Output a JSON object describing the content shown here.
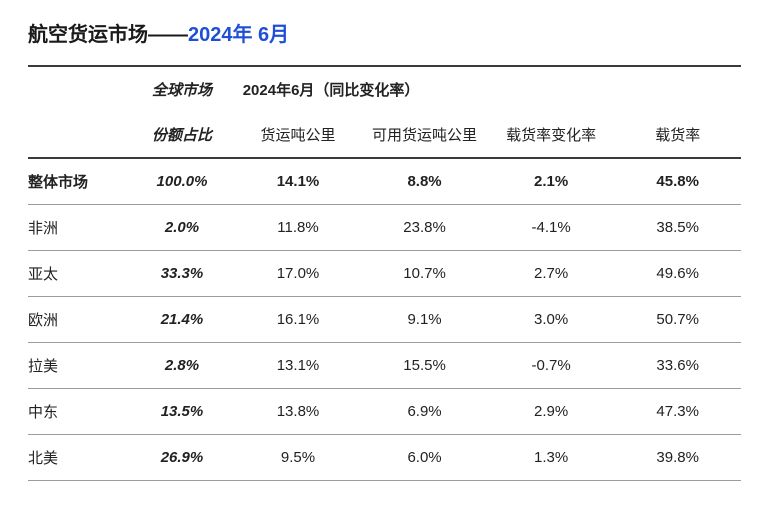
{
  "title": {
    "prefix": "航空货运市场——",
    "period": "2024年 6月"
  },
  "colors": {
    "title_black": "#1a1a1a",
    "title_blue": "#1f4fd6",
    "border_heavy": "#3a3a3a",
    "border_light": "#9c9c9c",
    "background": "#ffffff"
  },
  "header": {
    "top": {
      "share_group": "全球市场",
      "period_group": "2024年6月（同比变化率）"
    },
    "sub": {
      "share": "份额占比",
      "ctk": "货运吨公里",
      "actk": "可用货运吨公里",
      "lf_change": "载货率变化率",
      "lf": "载货率"
    }
  },
  "total": {
    "label": "整体市场",
    "share": "100.0%",
    "ctk": "14.1%",
    "actk": "8.8%",
    "lf_change": "2.1%",
    "lf": "45.8%"
  },
  "rows": [
    {
      "label": "非洲",
      "share": "2.0%",
      "ctk": "11.8%",
      "actk": "23.8%",
      "lf_change": "-4.1%",
      "lf": "38.5%"
    },
    {
      "label": "亚太",
      "share": "33.3%",
      "ctk": "17.0%",
      "actk": "10.7%",
      "lf_change": "2.7%",
      "lf": "49.6%"
    },
    {
      "label": "欧洲",
      "share": "21.4%",
      "ctk": "16.1%",
      "actk": "9.1%",
      "lf_change": "3.0%",
      "lf": "50.7%"
    },
    {
      "label": "拉美",
      "share": "2.8%",
      "ctk": "13.1%",
      "actk": "15.5%",
      "lf_change": "-0.7%",
      "lf": "33.6%"
    },
    {
      "label": "中东",
      "share": "13.5%",
      "ctk": "13.8%",
      "actk": "6.9%",
      "lf_change": "2.9%",
      "lf": "47.3%"
    },
    {
      "label": "北美",
      "share": "26.9%",
      "ctk": "9.5%",
      "actk": "6.0%",
      "lf_change": "1.3%",
      "lf": "39.8%"
    }
  ]
}
